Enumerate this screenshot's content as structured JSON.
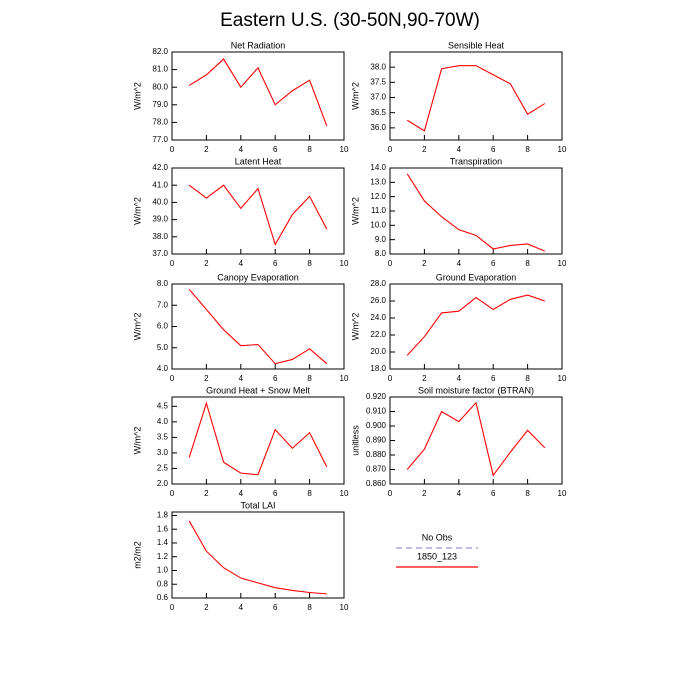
{
  "title": "Eastern U.S. (30-50N,90-70W)",
  "legend": [
    {
      "name": "No Obs",
      "color": "#9999dd",
      "dash": true
    },
    {
      "name": "1850_123",
      "color": "#ff0000",
      "dash": false
    }
  ],
  "chart_data": [
    {
      "type": "line",
      "title": "Net Radiation",
      "ylabel": "W/m^2",
      "color": "#ff0000",
      "x": [
        1,
        2,
        3,
        4,
        5,
        6,
        7,
        8,
        9
      ],
      "values": [
        80.1,
        80.7,
        81.6,
        80.0,
        81.1,
        79.0,
        79.8,
        80.4,
        77.8
      ],
      "xlim": [
        0,
        10
      ],
      "xticks": [
        0,
        2,
        4,
        6,
        8,
        10
      ],
      "ylim": [
        77,
        82
      ],
      "yticks": [
        {
          "value": 77,
          "label": "77.0"
        },
        {
          "value": 78,
          "label": "78.0"
        },
        {
          "value": 79,
          "label": "79.0"
        },
        {
          "value": 80,
          "label": "80.0"
        },
        {
          "value": 81,
          "label": "81.0"
        },
        {
          "value": 82,
          "label": "82.0"
        }
      ]
    },
    {
      "type": "line",
      "title": "Sensible Heat",
      "ylabel": "W/m^2",
      "color": "#ff0000",
      "x": [
        1,
        2,
        3,
        4,
        5,
        6,
        7,
        8,
        9
      ],
      "values": [
        36.25,
        35.9,
        37.95,
        38.05,
        38.05,
        37.75,
        37.45,
        36.45,
        36.8
      ],
      "xlim": [
        0,
        10
      ],
      "xticks": [
        0,
        2,
        4,
        6,
        8,
        10
      ],
      "ylim": [
        35.6,
        38.5
      ],
      "yticks": [
        {
          "value": 36,
          "label": "36.0"
        },
        36.5,
        {
          "value": 37,
          "label": "37.0"
        },
        37.5,
        {
          "value": 38,
          "label": "38.0"
        }
      ]
    },
    {
      "type": "line",
      "title": "Latent Heat",
      "ylabel": "W/m^2",
      "color": "#ff0000",
      "x": [
        1,
        2,
        3,
        4,
        5,
        6,
        7,
        8,
        9
      ],
      "values": [
        41.0,
        40.25,
        41.0,
        39.65,
        40.8,
        37.55,
        39.3,
        40.35,
        38.45
      ],
      "xlim": [
        0,
        10
      ],
      "xticks": [
        0,
        2,
        4,
        6,
        8,
        10
      ],
      "ylim": [
        37,
        42
      ],
      "yticks": [
        {
          "value": 37,
          "label": "37.0"
        },
        {
          "value": 38,
          "label": "38.0"
        },
        {
          "value": 39,
          "label": "39.0"
        },
        {
          "value": 40,
          "label": "40.0"
        },
        {
          "value": 41,
          "label": "41.0"
        },
        {
          "value": 42,
          "label": "42.0"
        }
      ]
    },
    {
      "type": "line",
      "title": "Transpiration",
      "ylabel": "W/m^2",
      "color": "#ff0000",
      "x": [
        1,
        2,
        3,
        4,
        5,
        6,
        7,
        8,
        9
      ],
      "values": [
        13.6,
        11.7,
        10.6,
        9.7,
        9.3,
        8.35,
        8.6,
        8.7,
        8.2
      ],
      "xlim": [
        0,
        10
      ],
      "xticks": [
        0,
        2,
        4,
        6,
        8,
        10
      ],
      "ylim": [
        8,
        14
      ],
      "yticks": [
        {
          "value": 8,
          "label": "8.0"
        },
        {
          "value": 9,
          "label": "9.0"
        },
        {
          "value": 10,
          "label": "10.0"
        },
        {
          "value": 11,
          "label": "11.0"
        },
        {
          "value": 12,
          "label": "12.0"
        },
        {
          "value": 13,
          "label": "13.0"
        },
        {
          "value": 14,
          "label": "14.0"
        }
      ]
    },
    {
      "type": "line",
      "title": "Canopy Evaporation",
      "ylabel": "W/m^2",
      "color": "#ff0000",
      "x": [
        1,
        2,
        3,
        4,
        5,
        6,
        7,
        8,
        9
      ],
      "values": [
        7.75,
        6.8,
        5.85,
        5.1,
        5.15,
        4.25,
        4.45,
        4.95,
        4.25
      ],
      "xlim": [
        0,
        10
      ],
      "xticks": [
        0,
        2,
        4,
        6,
        8,
        10
      ],
      "ylim": [
        4,
        8
      ],
      "yticks": [
        {
          "value": 4,
          "label": "4.0"
        },
        {
          "value": 5,
          "label": "5.0"
        },
        {
          "value": 6,
          "label": "6.0"
        },
        {
          "value": 7,
          "label": "7.0"
        },
        {
          "value": 8,
          "label": "8.0"
        }
      ]
    },
    {
      "type": "line",
      "title": "Ground Evaporation",
      "ylabel": "W/m^2",
      "color": "#ff0000",
      "x": [
        1,
        2,
        3,
        4,
        5,
        6,
        7,
        8,
        9
      ],
      "values": [
        19.6,
        21.8,
        24.6,
        24.8,
        26.4,
        25.0,
        26.2,
        26.7,
        26.0
      ],
      "xlim": [
        0,
        10
      ],
      "xticks": [
        0,
        2,
        4,
        6,
        8,
        10
      ],
      "ylim": [
        18,
        28
      ],
      "yticks": [
        {
          "value": 18,
          "label": "18.0"
        },
        {
          "value": 20,
          "label": "20.0"
        },
        {
          "value": 22,
          "label": "22.0"
        },
        {
          "value": 24,
          "label": "24.0"
        },
        {
          "value": 26,
          "label": "26.0"
        },
        {
          "value": 28,
          "label": "28.0"
        }
      ]
    },
    {
      "type": "line",
      "title": "Ground Heat + Snow Melt",
      "ylabel": "W/m^2",
      "color": "#ff0000",
      "x": [
        1,
        2,
        3,
        4,
        5,
        6,
        7,
        8,
        9
      ],
      "values": [
        2.85,
        4.6,
        2.7,
        2.35,
        2.3,
        3.75,
        3.15,
        3.65,
        2.55
      ],
      "xlim": [
        0,
        10
      ],
      "xticks": [
        0,
        2,
        4,
        6,
        8,
        10
      ],
      "ylim": [
        2,
        4.8
      ],
      "yticks": [
        {
          "value": 2,
          "label": "2.0"
        },
        2.5,
        {
          "value": 3,
          "label": "3.0"
        },
        3.5,
        {
          "value": 4,
          "label": "4.0"
        },
        4.5
      ]
    },
    {
      "type": "line",
      "title": "Soil moisture factor (BTRAN)",
      "ylabel": "unitless",
      "color": "#ff0000",
      "x": [
        1,
        2,
        3,
        4,
        5,
        6,
        7,
        8,
        9
      ],
      "values": [
        0.87,
        0.884,
        0.91,
        0.903,
        0.916,
        0.866,
        0.882,
        0.897,
        0.885
      ],
      "xlim": [
        0,
        10
      ],
      "xticks": [
        0,
        2,
        4,
        6,
        8,
        10
      ],
      "ylim": [
        0.86,
        0.92
      ],
      "yticks": [
        {
          "value": 0.86,
          "label": "0.860"
        },
        {
          "value": 0.87,
          "label": "0.870"
        },
        {
          "value": 0.88,
          "label": "0.880"
        },
        {
          "value": 0.89,
          "label": "0.890"
        },
        {
          "value": 0.9,
          "label": "0.900"
        },
        {
          "value": 0.91,
          "label": "0.910"
        },
        {
          "value": 0.92,
          "label": "0.920"
        }
      ]
    },
    {
      "type": "line",
      "title": "Total LAI",
      "ylabel": "m2/m2",
      "color": "#ff0000",
      "x": [
        1,
        2,
        3,
        4,
        5,
        6,
        7,
        8,
        9
      ],
      "values": [
        1.72,
        1.28,
        1.04,
        0.89,
        0.82,
        0.75,
        0.71,
        0.68,
        0.66
      ],
      "xlim": [
        0,
        10
      ],
      "xticks": [
        0,
        2,
        4,
        6,
        8,
        10
      ],
      "ylim": [
        0.6,
        1.85
      ],
      "yticks": [
        0.6,
        0.8,
        {
          "value": 1,
          "label": "1.0"
        },
        1.2,
        1.4,
        1.6,
        1.8
      ]
    }
  ]
}
